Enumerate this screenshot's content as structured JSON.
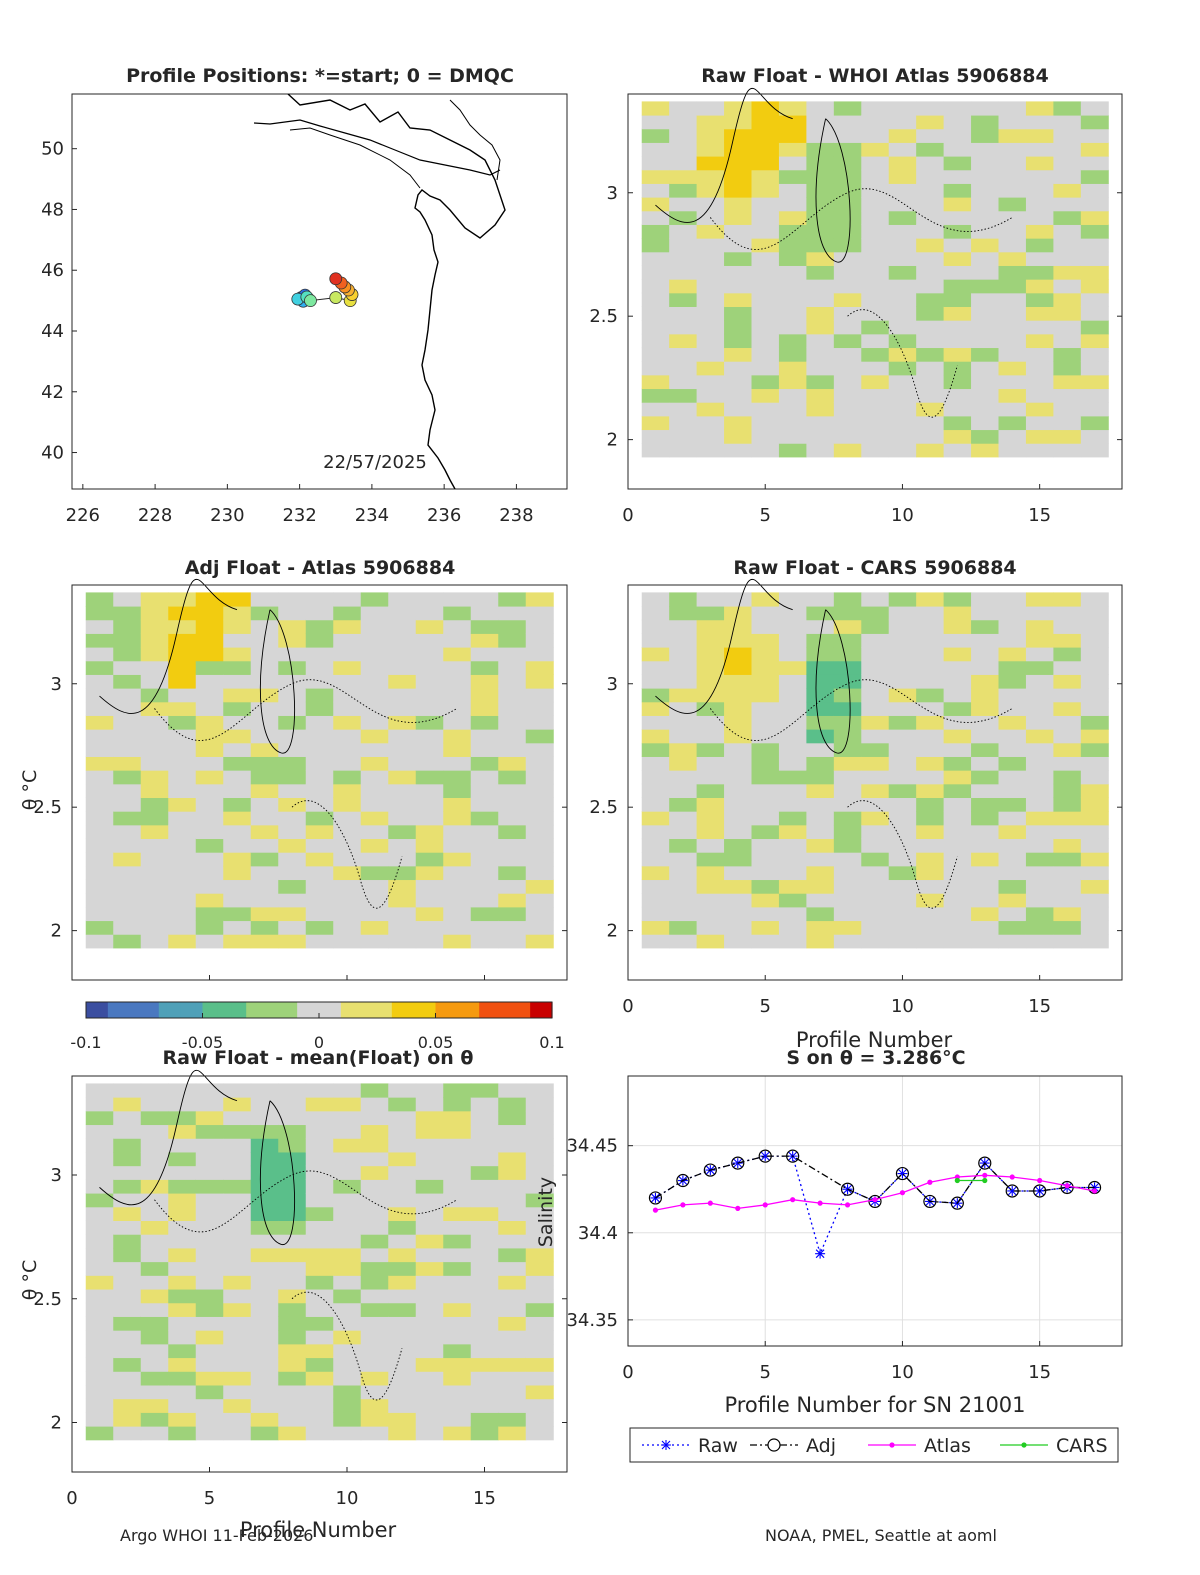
{
  "map_panel": {
    "title": "Profile Positions: *=start; 0 = DMQC",
    "date_label": "22/57/2025",
    "xlim": [
      225.7,
      239.4
    ],
    "ylim": [
      38.8,
      51.8
    ],
    "xticks": [
      226,
      228,
      230,
      232,
      234,
      236,
      238
    ],
    "yticks": [
      40,
      42,
      44,
      46,
      48,
      50
    ],
    "positions": [
      {
        "lon": 232.05,
        "lat": 45.1,
        "color": "#2f4fd0"
      },
      {
        "lon": 232.15,
        "lat": 45.18,
        "color": "#2a6fe0"
      },
      {
        "lon": 232.25,
        "lat": 45.05,
        "color": "#1e90ff"
      },
      {
        "lon": 232.1,
        "lat": 44.98,
        "color": "#30b0f0"
      },
      {
        "lon": 231.95,
        "lat": 45.05,
        "color": "#40d0e0"
      },
      {
        "lon": 232.2,
        "lat": 45.12,
        "color": "#55e0c0"
      },
      {
        "lon": 232.3,
        "lat": 45.0,
        "color": "#7ee8a0"
      },
      {
        "lon": 233.0,
        "lat": 45.1,
        "color": "#c8e860"
      },
      {
        "lon": 233.4,
        "lat": 45.0,
        "color": "#e8e040"
      },
      {
        "lon": 233.45,
        "lat": 45.2,
        "color": "#f8d030"
      },
      {
        "lon": 233.35,
        "lat": 45.35,
        "color": "#f8b030"
      },
      {
        "lon": 233.25,
        "lat": 45.45,
        "color": "#f89020"
      },
      {
        "lon": 233.15,
        "lat": 45.58,
        "color": "#f06020"
      },
      {
        "lon": 233.0,
        "lat": 45.72,
        "color": "#e03020"
      }
    ]
  },
  "panels": [
    {
      "id": "raw-whoi",
      "title": "Raw Float - WHOI Atlas  5906884"
    },
    {
      "id": "adj-atlas",
      "title": "Adj Float - Atlas  5906884"
    },
    {
      "id": "raw-cars",
      "title": "Raw Float - CARS  5906884"
    },
    {
      "id": "raw-mean",
      "title": "Raw Float - mean(Float) on θ"
    }
  ],
  "theta_axis": {
    "ylabel": "θ °C",
    "ylim": [
      1.8,
      3.4
    ],
    "yticks": [
      "2",
      "2.5",
      "3"
    ],
    "xlim": [
      0,
      18
    ],
    "xticks": [
      "0",
      "5",
      "10",
      "15"
    ],
    "xlabel": "Profile Number"
  },
  "colorbar": {
    "min": -0.1,
    "max": 0.1,
    "ticks": [
      "-0.1",
      "-0.05",
      "0",
      "0.05",
      "0.1"
    ],
    "colors": [
      "#3b4ea0",
      "#4a78c0",
      "#4fa0b8",
      "#5abf8a",
      "#9ed27a",
      "#d6d6d6",
      "#e8e070",
      "#f2cc10",
      "#f59a10",
      "#f05010",
      "#c80000"
    ]
  },
  "chart_data": [
    {
      "type": "heatmap",
      "title": "Raw Float - WHOI Atlas  5906884",
      "xlabel": "",
      "ylabel": "θ °C",
      "xlim": [
        0,
        18
      ],
      "ylim": [
        1.8,
        3.4
      ],
      "profiles_x": [
        1,
        2,
        3,
        4,
        5,
        6,
        7,
        8,
        9,
        10,
        11,
        12,
        13,
        14,
        15,
        16,
        17
      ],
      "highlights": [
        {
          "x": 4,
          "theta": 3.1,
          "value": 0.04
        },
        {
          "x": 5,
          "theta": 3.25,
          "value": 0.045
        },
        {
          "x": 7.5,
          "theta": 2.95,
          "value": -0.035
        }
      ]
    },
    {
      "type": "heatmap",
      "title": "Adj Float - Atlas  5906884",
      "xlabel": "",
      "ylabel": "θ °C",
      "xlim": [
        0,
        18
      ],
      "ylim": [
        1.8,
        3.4
      ],
      "profiles_x": [
        1,
        2,
        3,
        4,
        5,
        6,
        7,
        8,
        9,
        10,
        11,
        12,
        13,
        14,
        15,
        16,
        17
      ],
      "highlights": [
        {
          "x": 4,
          "theta": 3.2,
          "value": 0.04
        },
        {
          "x": 5,
          "theta": 3.3,
          "value": 0.045
        }
      ]
    },
    {
      "type": "heatmap",
      "title": "Raw Float - CARS  5906884",
      "xlabel": "Profile Number",
      "ylabel": "θ °C",
      "xlim": [
        0,
        18
      ],
      "ylim": [
        1.8,
        3.4
      ],
      "profiles_x": [
        1,
        2,
        3,
        4,
        5,
        6,
        7,
        8,
        9,
        10,
        11,
        12,
        13,
        14,
        15,
        16,
        17
      ],
      "highlights": [
        {
          "x": 4,
          "theta": 3.05,
          "value": 0.03
        },
        {
          "x": 7.5,
          "theta": 2.95,
          "value": -0.04
        }
      ]
    },
    {
      "type": "heatmap",
      "title": "Raw Float - mean(Float) on θ",
      "xlabel": "Profile Number",
      "ylabel": "θ °C",
      "xlim": [
        0,
        18
      ],
      "ylim": [
        1.8,
        3.4
      ],
      "profiles_x": [
        1,
        2,
        3,
        4,
        5,
        6,
        7,
        8,
        9,
        10,
        11,
        12,
        13,
        14,
        15,
        16,
        17
      ],
      "highlights": [
        {
          "x": 7.5,
          "theta": 2.95,
          "value": -0.045
        }
      ]
    },
    {
      "type": "line",
      "title": "S on θ = 3.286°C",
      "xlabel": "Profile Number for SN 21001",
      "ylabel": "Salinity",
      "xlim": [
        0,
        18
      ],
      "ylim": [
        34.335,
        34.49
      ],
      "xticks": [
        "0",
        "5",
        "10",
        "15"
      ],
      "yticks": [
        34.35,
        34.4,
        34.45
      ],
      "ytick_labels": [
        "34.35",
        "34.4",
        "34.45"
      ],
      "series": [
        {
          "name": "Raw",
          "color": "#0000ff",
          "marker": "star",
          "dash": "2,3",
          "x": [
            1,
            2,
            3,
            4,
            5,
            6,
            7,
            8,
            9,
            10,
            11,
            12,
            13,
            14,
            15,
            16,
            17
          ],
          "y": [
            34.42,
            34.43,
            34.436,
            34.44,
            34.444,
            34.444,
            34.388,
            34.425,
            34.418,
            34.434,
            34.418,
            34.417,
            34.44,
            34.424,
            34.424,
            34.426,
            34.426
          ]
        },
        {
          "name": "Adj",
          "color": "#000000",
          "marker": "circle",
          "dash": "7,3,2,3",
          "x": [
            1,
            2,
            3,
            4,
            5,
            6,
            8,
            9,
            10,
            11,
            12,
            13,
            14,
            15,
            16,
            17
          ],
          "y": [
            34.42,
            34.43,
            34.436,
            34.44,
            34.444,
            34.444,
            34.425,
            34.418,
            34.434,
            34.418,
            34.417,
            34.44,
            34.424,
            34.424,
            34.426,
            34.426
          ]
        },
        {
          "name": "Atlas",
          "color": "#ff00ff",
          "marker": "dot",
          "dash": "",
          "x": [
            1,
            2,
            3,
            4,
            5,
            6,
            7,
            8,
            9,
            10,
            11,
            12,
            13,
            14,
            15,
            16,
            17
          ],
          "y": [
            34.413,
            34.416,
            34.417,
            34.414,
            34.416,
            34.419,
            34.417,
            34.416,
            34.419,
            34.423,
            34.429,
            34.432,
            34.433,
            34.432,
            34.43,
            34.427,
            34.424
          ]
        },
        {
          "name": "CARS",
          "color": "#22cc22",
          "marker": "dot",
          "dash": "",
          "x": [
            12,
            13
          ],
          "y": [
            34.43,
            34.43
          ]
        }
      ]
    }
  ],
  "footer": {
    "left": "Argo WHOI 11-Feb-2026",
    "right": "NOAA, PMEL, Seattle at aoml"
  }
}
